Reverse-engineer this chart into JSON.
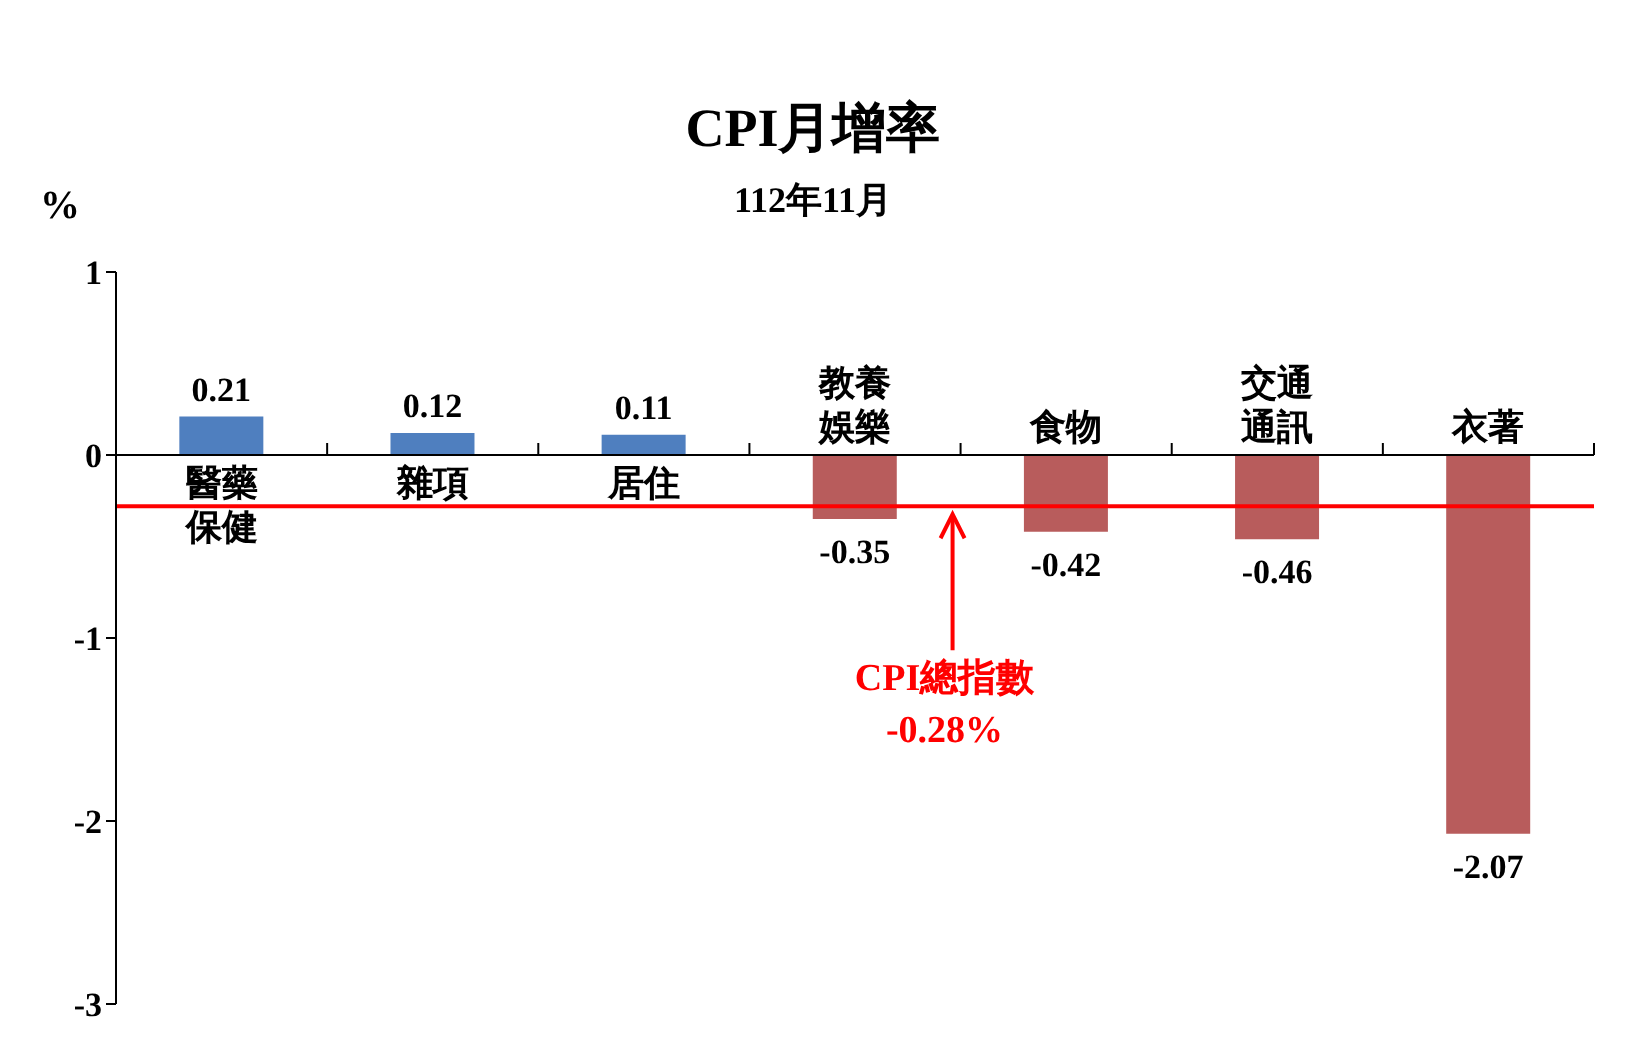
{
  "chart_data": {
    "type": "bar",
    "title": "CPI月增率",
    "subtitle": "112年11月",
    "ylabel": "%",
    "categories": [
      "醫藥保健",
      "雜項",
      "居住",
      "教養娛樂",
      "食物",
      "交通通訊",
      "衣著"
    ],
    "values": [
      0.21,
      0.12,
      0.11,
      -0.35,
      -0.42,
      -0.46,
      -2.07
    ],
    "colors": [
      "#4f7fbf",
      "#4f7fbf",
      "#4f7fbf",
      "#b85c5c",
      "#b85c5c",
      "#b85c5c",
      "#b85c5c"
    ],
    "ylim": [
      -3,
      1
    ],
    "yticks": [
      -3,
      -2,
      -1,
      0,
      1
    ],
    "ref_lines": [
      {
        "axis": "y",
        "value": -0.28,
        "label": "CPI總指數 -0.28%",
        "color": "#ff0000"
      }
    ],
    "data_labels": true
  }
}
